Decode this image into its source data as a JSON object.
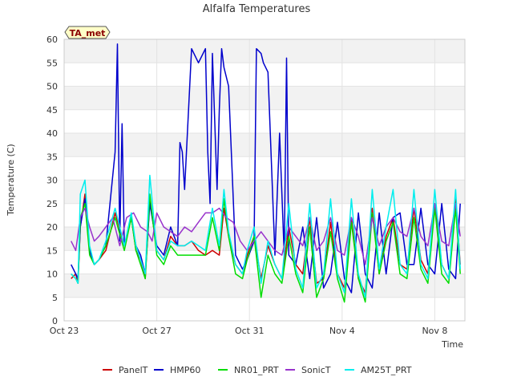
{
  "chart_data": {
    "type": "line",
    "title": "Alfalfa Temperatures",
    "xlabel": "Time",
    "ylabel": "Temperature (C)",
    "badge": "TA_met",
    "xlim": [
      0,
      17.3
    ],
    "ylim": [
      0,
      60
    ],
    "yticks": [
      0,
      5,
      10,
      15,
      20,
      25,
      30,
      35,
      40,
      45,
      50,
      55,
      60
    ],
    "xticks": [
      {
        "value": 0,
        "label": "Oct 23"
      },
      {
        "value": 4,
        "label": "Oct 27"
      },
      {
        "value": 8,
        "label": "Oct 31"
      },
      {
        "value": 12,
        "label": "Nov 4"
      },
      {
        "value": 16,
        "label": "Nov 8"
      }
    ],
    "grid": true,
    "legend_position": "bottom",
    "series": [
      {
        "name": "PanelT",
        "color": "#cc0000",
        "x": [
          0.3,
          0.5,
          0.6,
          0.7,
          0.9,
          1.1,
          1.3,
          1.5,
          1.8,
          2.2,
          2.6,
          2.9,
          3.1,
          3.3,
          3.5,
          3.7,
          4.0,
          4.3,
          4.6,
          4.9,
          5.2,
          5.5,
          5.8,
          6.1,
          6.4,
          6.7,
          6.9,
          7.1,
          7.4,
          7.7,
          7.9,
          8.2,
          8.5,
          8.8,
          9.1,
          9.4,
          9.7,
          10.0,
          10.3,
          10.6,
          10.9,
          11.2,
          11.5,
          11.8,
          12.1,
          12.4,
          12.7,
          13.0,
          13.3,
          13.6,
          13.9,
          14.2,
          14.5,
          14.8,
          15.1,
          15.4,
          15.7,
          16.0,
          16.3,
          16.6,
          16.9,
          17.1
        ],
        "y": [
          9,
          10,
          8,
          20,
          27,
          15,
          12,
          13,
          15,
          23,
          16,
          22,
          15,
          13,
          9,
          26,
          15,
          13,
          18,
          16,
          16,
          17,
          15,
          14,
          15,
          14,
          24,
          18,
          12,
          10,
          14,
          18,
          9,
          16,
          12,
          9,
          20,
          12,
          10,
          22,
          8,
          9,
          21,
          10,
          7,
          22,
          9,
          6,
          24,
          10,
          18,
          22,
          12,
          11,
          24,
          13,
          10,
          25,
          12,
          9,
          26,
          12
        ]
      },
      {
        "name": "HMP60",
        "color": "#0000cc",
        "x": [
          0.3,
          0.5,
          0.6,
          0.7,
          0.9,
          1.1,
          1.3,
          1.5,
          1.8,
          2.2,
          2.3,
          2.4,
          2.5,
          2.6,
          2.9,
          3.1,
          3.3,
          3.5,
          3.7,
          4.0,
          4.3,
          4.6,
          4.9,
          5.0,
          5.1,
          5.2,
          5.5,
          5.8,
          6.1,
          6.2,
          6.3,
          6.4,
          6.6,
          6.7,
          6.8,
          6.9,
          7.1,
          7.4,
          7.7,
          7.9,
          8.2,
          8.3,
          8.5,
          8.6,
          8.8,
          9.1,
          9.3,
          9.5,
          9.6,
          9.7,
          10.0,
          10.3,
          10.6,
          10.9,
          11.2,
          11.5,
          11.8,
          12.1,
          12.4,
          12.7,
          13.0,
          13.3,
          13.6,
          13.9,
          14.2,
          14.5,
          14.8,
          15.1,
          15.4,
          15.7,
          16.0,
          16.3,
          16.6,
          16.9,
          17.1
        ],
        "y": [
          12,
          10,
          9,
          20,
          26,
          15,
          12,
          13,
          16,
          36,
          59,
          17,
          42,
          16,
          22,
          16,
          14,
          10,
          25,
          16,
          14,
          20,
          16,
          38,
          36,
          28,
          58,
          55,
          58,
          36,
          25,
          57,
          28,
          45,
          58,
          54,
          50,
          14,
          11,
          13,
          17,
          58,
          57,
          55,
          53,
          14,
          40,
          14,
          56,
          14,
          12,
          20,
          9,
          22,
          7,
          10,
          21,
          9,
          6,
          23,
          10,
          7,
          23,
          10,
          22,
          23,
          12,
          12,
          24,
          12,
          10,
          25,
          11,
          9,
          25
        ]
      },
      {
        "name": "NR01_PRT",
        "color": "#00dd00",
        "x": [
          0.3,
          0.5,
          0.6,
          0.7,
          0.9,
          1.1,
          1.3,
          1.5,
          1.8,
          2.2,
          2.6,
          2.9,
          3.1,
          3.3,
          3.5,
          3.7,
          4.0,
          4.3,
          4.6,
          4.9,
          5.2,
          5.5,
          5.8,
          6.1,
          6.4,
          6.7,
          6.9,
          7.1,
          7.4,
          7.7,
          7.9,
          8.2,
          8.5,
          8.8,
          9.1,
          9.4,
          9.7,
          10.0,
          10.3,
          10.6,
          10.9,
          11.2,
          11.5,
          11.8,
          12.1,
          12.4,
          12.7,
          13.0,
          13.3,
          13.6,
          13.9,
          14.2,
          14.5,
          14.8,
          15.1,
          15.4,
          15.7,
          16.0,
          16.3,
          16.6,
          16.9,
          17.1
        ],
        "y": [
          10,
          9,
          8,
          22,
          25,
          14,
          12,
          13,
          16,
          22,
          15,
          22,
          15,
          12,
          9,
          27,
          14,
          12,
          16,
          14,
          14,
          14,
          14,
          14,
          22,
          15,
          26,
          18,
          10,
          9,
          13,
          18,
          5,
          14,
          10,
          8,
          18,
          10,
          6,
          20,
          5,
          9,
          19,
          9,
          4,
          21,
          9,
          4,
          23,
          10,
          17,
          21,
          10,
          9,
          22,
          11,
          8,
          24,
          10,
          8,
          24,
          10
        ]
      },
      {
        "name": "SonicT",
        "color": "#9933cc",
        "x": [
          0.3,
          0.5,
          0.7,
          0.9,
          1.1,
          1.3,
          1.5,
          1.8,
          2.1,
          2.4,
          2.7,
          3.0,
          3.3,
          3.6,
          3.8,
          4.0,
          4.3,
          4.6,
          4.9,
          5.2,
          5.5,
          5.8,
          6.1,
          6.4,
          6.7,
          7.0,
          7.3,
          7.6,
          7.9,
          8.2,
          8.5,
          8.8,
          9.1,
          9.4,
          9.7,
          10.0,
          10.3,
          10.6,
          10.9,
          11.2,
          11.5,
          11.8,
          12.1,
          12.4,
          12.7,
          13.0,
          13.3,
          13.6,
          13.9,
          14.2,
          14.5,
          14.8,
          15.1,
          15.4,
          15.7,
          16.0,
          16.3,
          16.6,
          16.9,
          17.1
        ],
        "y": [
          17,
          15,
          22,
          24,
          20,
          17,
          18,
          20,
          22,
          16,
          22,
          23,
          20,
          19,
          17,
          23,
          20,
          19,
          18,
          20,
          19,
          21,
          23,
          23,
          24,
          22,
          21,
          17,
          15,
          17,
          19,
          17,
          15,
          14,
          20,
          18,
          16,
          22,
          15,
          17,
          22,
          15,
          14,
          22,
          18,
          12,
          22,
          16,
          20,
          22,
          19,
          18,
          24,
          18,
          16,
          25,
          17,
          16,
          25,
          18
        ]
      },
      {
        "name": "AM25T_PRT",
        "color": "#00eeee",
        "x": [
          0.3,
          0.5,
          0.6,
          0.7,
          0.9,
          1.1,
          1.3,
          1.5,
          1.8,
          2.2,
          2.6,
          2.9,
          3.1,
          3.3,
          3.5,
          3.7,
          4.0,
          4.3,
          4.6,
          4.9,
          5.2,
          5.5,
          5.8,
          6.1,
          6.4,
          6.7,
          6.9,
          7.1,
          7.4,
          7.7,
          7.9,
          8.2,
          8.5,
          8.8,
          9.1,
          9.4,
          9.7,
          10.0,
          10.3,
          10.6,
          10.9,
          11.2,
          11.5,
          11.8,
          12.1,
          12.4,
          12.7,
          13.0,
          13.3,
          13.6,
          13.9,
          14.2,
          14.5,
          14.8,
          15.1,
          15.4,
          15.7,
          16.0,
          16.3,
          16.6,
          16.9,
          17.1
        ],
        "y": [
          10,
          9,
          8,
          27,
          30,
          16,
          12,
          13,
          17,
          24,
          16,
          23,
          16,
          13,
          10,
          31,
          15,
          13,
          17,
          16,
          16,
          17,
          16,
          15,
          24,
          16,
          28,
          19,
          12,
          10,
          15,
          20,
          8,
          17,
          12,
          9,
          25,
          11,
          7,
          25,
          7,
          10,
          26,
          10,
          6,
          26,
          10,
          5,
          28,
          11,
          20,
          28,
          12,
          10,
          28,
          12,
          9,
          28,
          12,
          9,
          28,
          11
        ]
      }
    ]
  }
}
